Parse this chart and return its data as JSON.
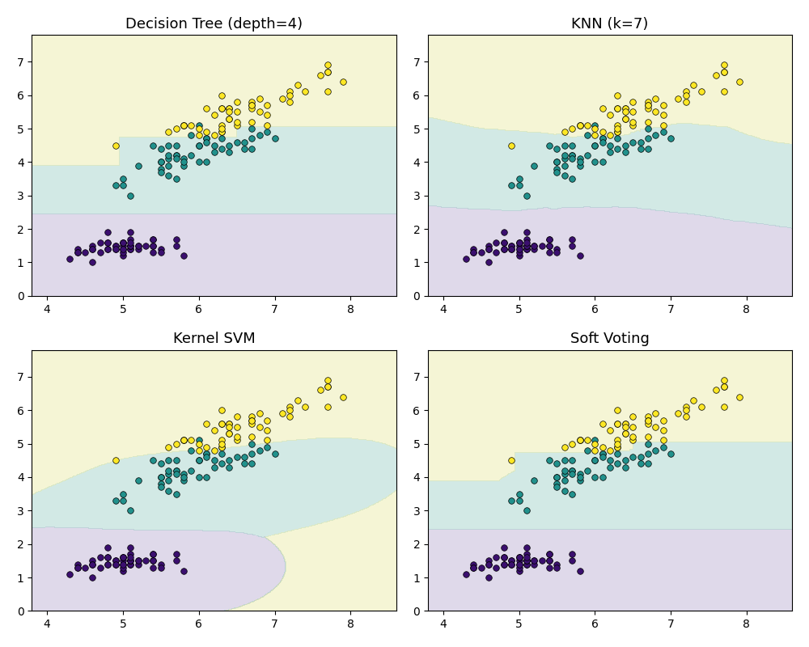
{
  "titles": [
    "Decision Tree (depth=4)",
    "KNN (k=7)",
    "Kernel SVM",
    "Soft Voting"
  ],
  "xlim": [
    3.8,
    8.6
  ],
  "ylim": [
    0.0,
    7.8
  ],
  "xticks": [
    4,
    5,
    6,
    7,
    8
  ],
  "yticks": [
    0,
    1,
    2,
    3,
    4,
    5,
    6,
    7
  ],
  "class_colors_bg": [
    "#b0a0cc",
    "#90c8c0",
    "#e8e898"
  ],
  "point_colors": [
    "#3b0f6f",
    "#21918c",
    "#fde725"
  ],
  "figsize": [
    10,
    8
  ],
  "dpi": 100,
  "alpha": 0.4,
  "scatter_size": 30,
  "scatter_edgecolor": "black",
  "scatter_linewidth": 0.5,
  "title_fontsize": 13,
  "tick_fontsize": 10
}
